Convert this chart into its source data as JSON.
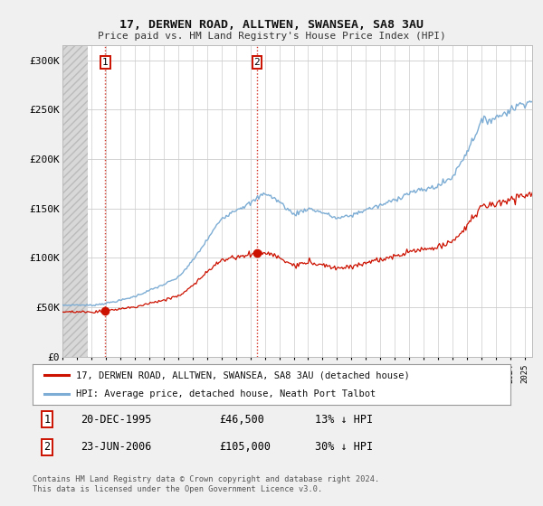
{
  "title1": "17, DERWEN ROAD, ALLTWEN, SWANSEA, SA8 3AU",
  "title2": "Price paid vs. HM Land Registry's House Price Index (HPI)",
  "background_color": "#f0f0f0",
  "plot_bg": "#ffffff",
  "hpi_color": "#7dadd4",
  "price_color": "#cc1100",
  "marker_color": "#cc1100",
  "t1_x": 1995.96,
  "t1_y": 46500,
  "t2_x": 2006.46,
  "t2_y": 105000,
  "legend1": "17, DERWEN ROAD, ALLTWEN, SWANSEA, SA8 3AU (detached house)",
  "legend2": "HPI: Average price, detached house, Neath Port Talbot",
  "t1_label_date": "20-DEC-1995",
  "t1_price": "£46,500",
  "t1_pct": "13% ↓ HPI",
  "t2_label_date": "23-JUN-2006",
  "t2_price": "£105,000",
  "t2_pct": "30% ↓ HPI",
  "footer": "Contains HM Land Registry data © Crown copyright and database right 2024.\nThis data is licensed under the Open Government Licence v3.0.",
  "yticks": [
    0,
    50000,
    100000,
    150000,
    200000,
    250000,
    300000
  ],
  "ytick_labels": [
    "£0",
    "£50K",
    "£100K",
    "£150K",
    "£200K",
    "£250K",
    "£300K"
  ],
  "ylim": [
    0,
    315000
  ],
  "xlim_left": 1993.0,
  "xlim_right": 2025.5,
  "hatch_end": 1994.75,
  "hpi_yearly": {
    "1993": 52000,
    "1994": 52500,
    "1995": 52000,
    "1996": 54000,
    "1997": 57000,
    "1998": 61000,
    "1999": 67000,
    "2000": 73000,
    "2001": 80000,
    "2002": 97000,
    "2003": 118000,
    "2004": 140000,
    "2005": 149000,
    "2006": 155000,
    "2007": 166000,
    "2008": 157000,
    "2009": 144000,
    "2010": 150000,
    "2011": 146000,
    "2012": 140000,
    "2013": 143000,
    "2014": 149000,
    "2015": 153000,
    "2016": 159000,
    "2017": 166000,
    "2018": 169000,
    "2019": 173000,
    "2020": 182000,
    "2021": 208000,
    "2022": 238000,
    "2023": 242000,
    "2024": 250000,
    "2025": 258000
  }
}
